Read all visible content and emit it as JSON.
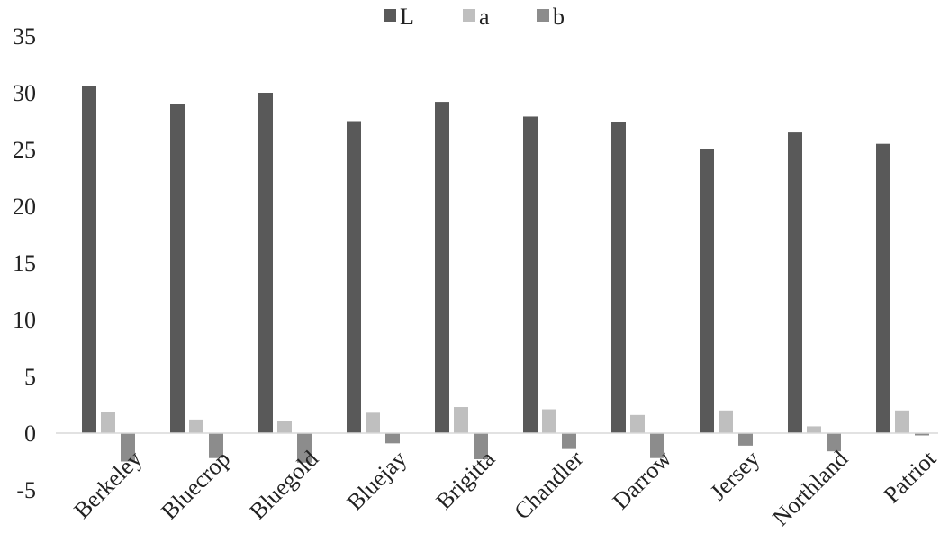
{
  "chart_data": {
    "type": "bar",
    "categories": [
      "Berkeley",
      "Bluecrop",
      "Bluegold",
      "Bluejay",
      "Brigitta",
      "Chandler",
      "Darrow",
      "Jersey",
      "Northland",
      "Patriot"
    ],
    "series": [
      {
        "name": "L",
        "color": "#595959",
        "values": [
          30.6,
          29.0,
          30.0,
          27.5,
          29.2,
          27.9,
          27.4,
          25.0,
          26.5,
          25.5
        ]
      },
      {
        "name": "a",
        "color": "#bfbfbf",
        "values": [
          1.9,
          1.2,
          1.1,
          1.8,
          2.3,
          2.1,
          1.6,
          2.0,
          0.6,
          2.0
        ]
      },
      {
        "name": "b",
        "color": "#8c8c8c",
        "values": [
          -2.5,
          -2.2,
          -2.6,
          -0.9,
          -2.3,
          -1.4,
          -2.2,
          -1.1,
          -1.6,
          -0.2
        ]
      }
    ],
    "y_ticks": [
      "35",
      "30",
      "25",
      "20",
      "15",
      "10",
      "5",
      "0",
      "-5"
    ],
    "ylim": [
      -5,
      35
    ],
    "grid": false,
    "legend_position": "top-center"
  }
}
